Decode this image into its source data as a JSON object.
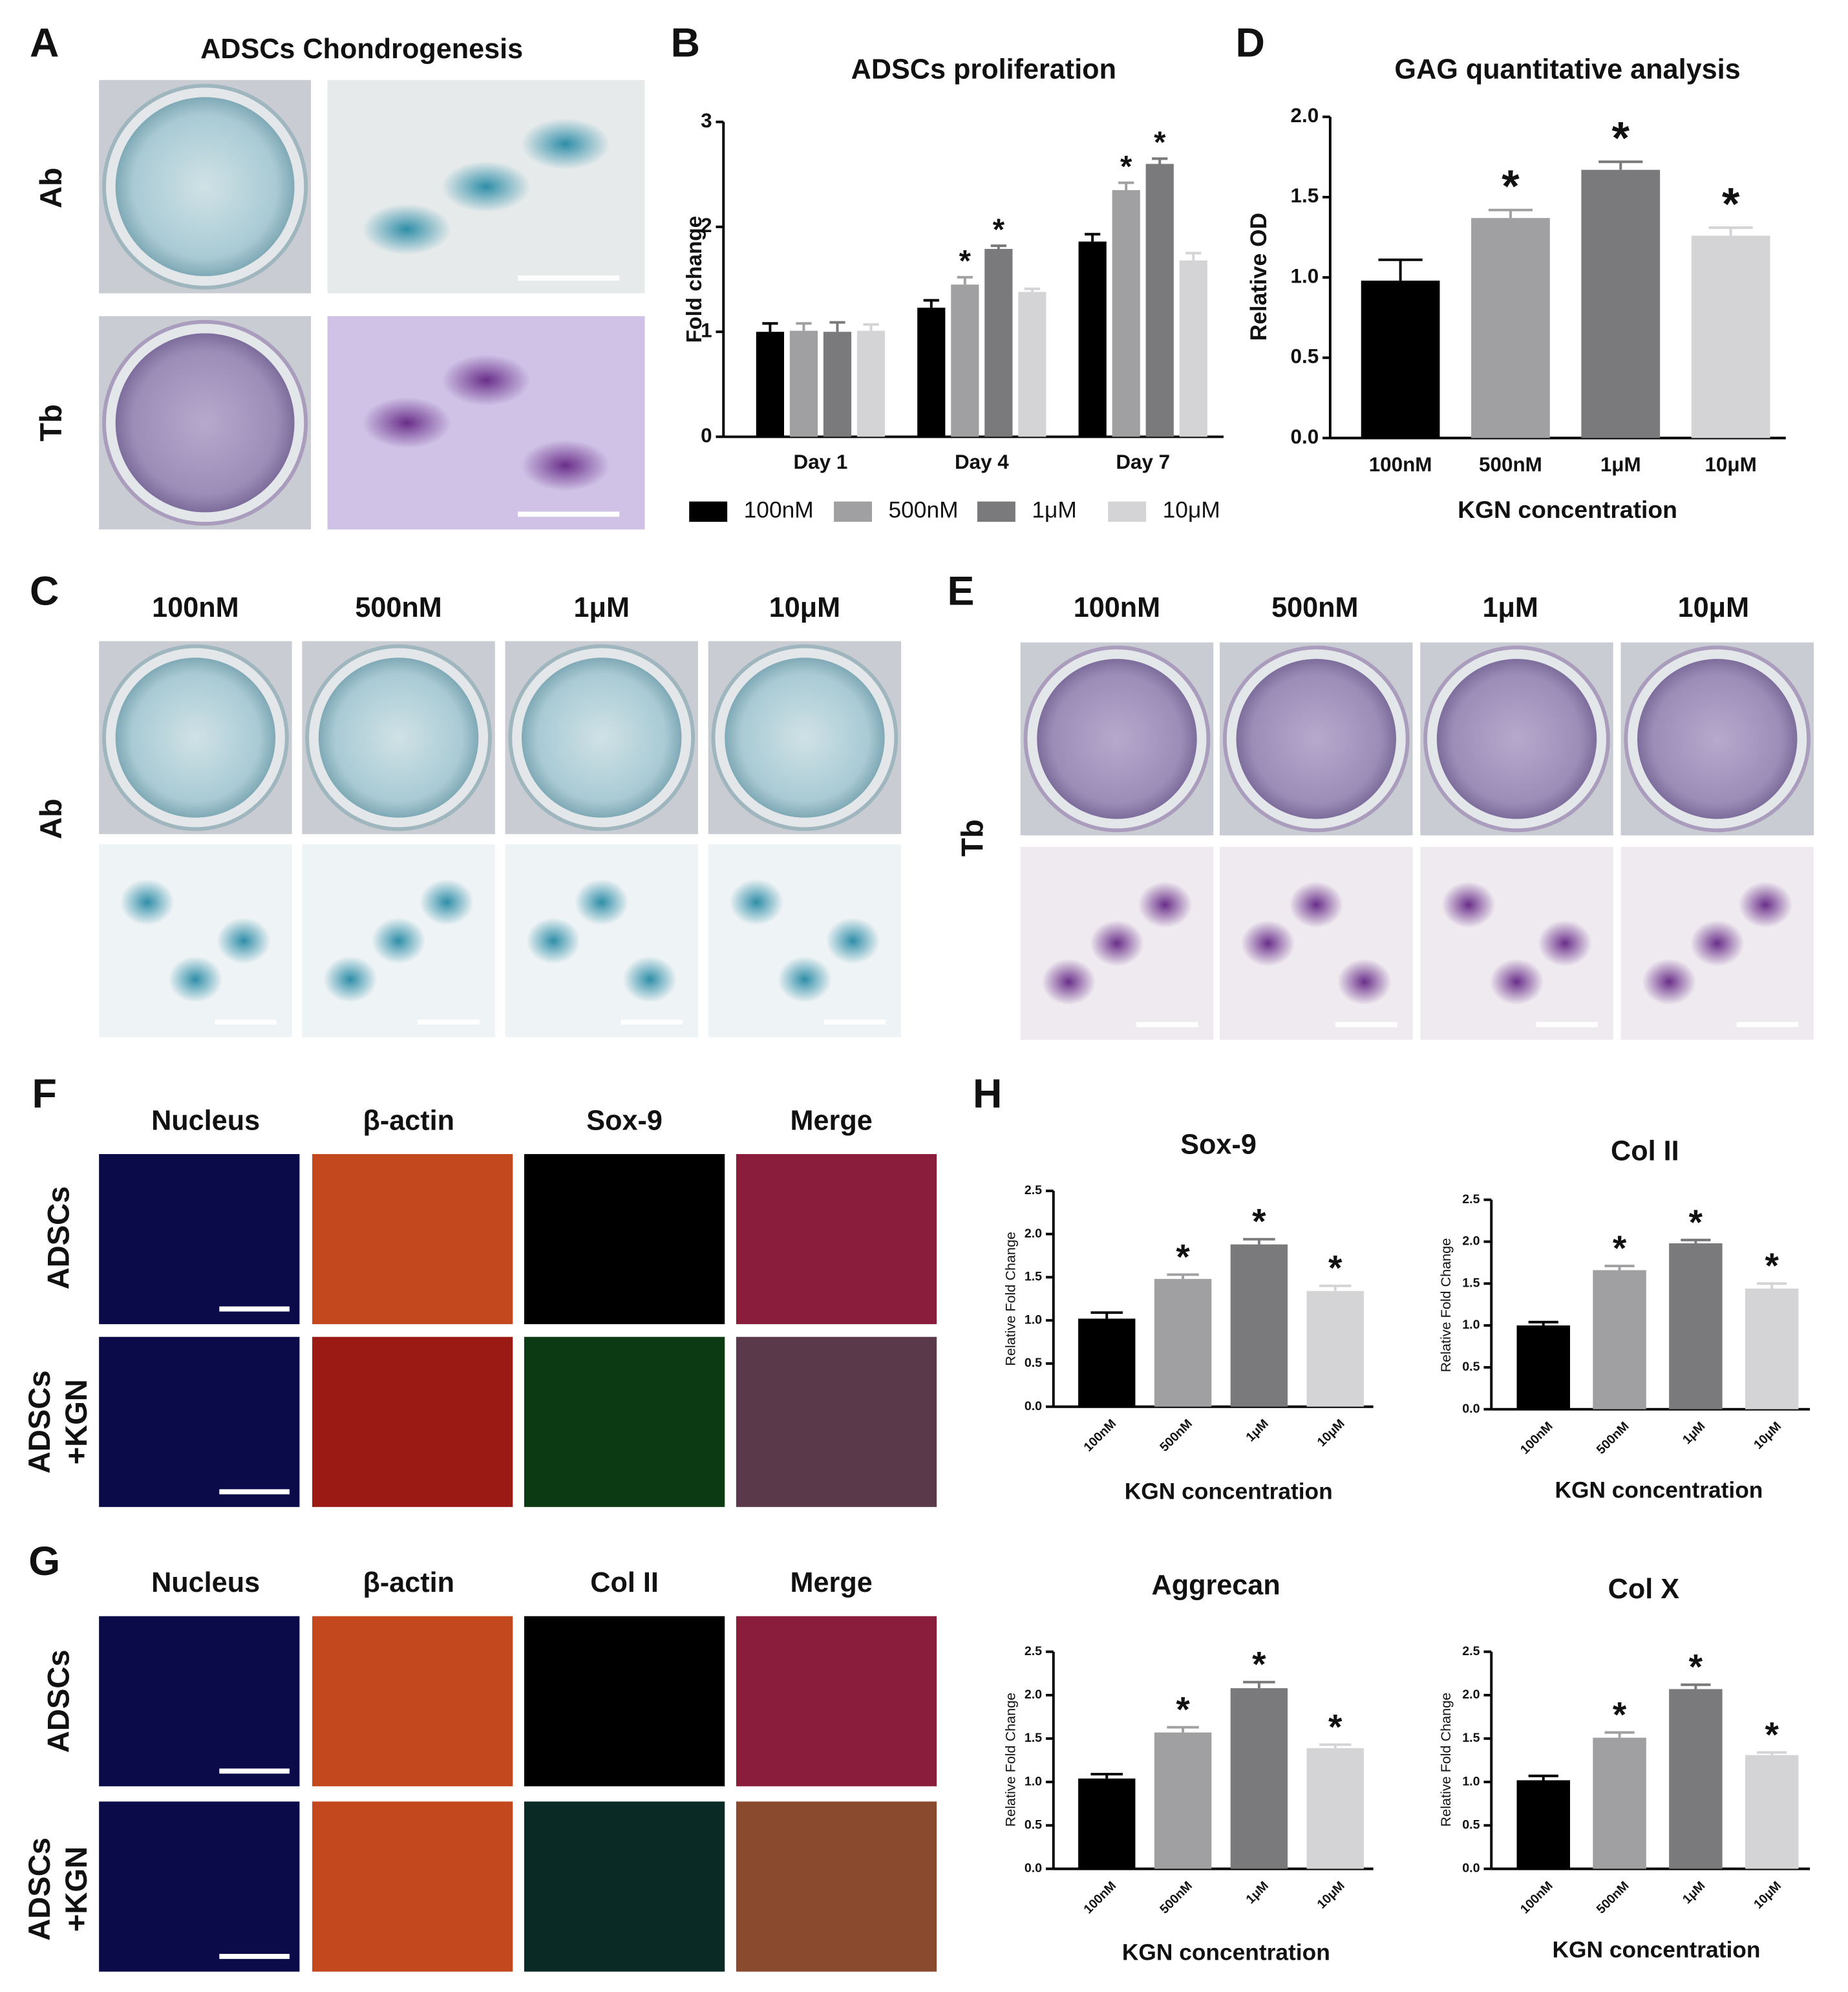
{
  "panels": {
    "A": {
      "letter": "A",
      "title": "ADSCs Chondrogenesis",
      "rows": [
        "Ab",
        "Tb"
      ]
    },
    "B": {
      "letter": "B"
    },
    "C": {
      "letter": "C",
      "columns": [
        "100nM",
        "500nM",
        "1μM",
        "10μM"
      ],
      "row": "Ab"
    },
    "D": {
      "letter": "D"
    },
    "E": {
      "letter": "E",
      "columns": [
        "100nM",
        "500nM",
        "1μM",
        "10μM"
      ],
      "row": "Tb"
    },
    "F": {
      "letter": "F",
      "columns": [
        "Nucleus",
        "β-actin",
        "Sox-9",
        "Merge"
      ],
      "rows": [
        [
          "ADSCs"
        ],
        [
          "ADSCs",
          "+KGN"
        ]
      ]
    },
    "G": {
      "letter": "G",
      "columns": [
        "Nucleus",
        "β-actin",
        "Col II",
        "Merge"
      ],
      "rows": [
        [
          "ADSCs"
        ],
        [
          "ADSCs",
          "+KGN"
        ]
      ]
    },
    "H": {
      "letter": "H"
    }
  },
  "chart_data": [
    {
      "type": "bar",
      "title": "ADSCs proliferation",
      "y_label": "Fold change",
      "categories": [
        "Day 1",
        "Day 4",
        "Day 7"
      ],
      "series": [
        {
          "name": "100nM",
          "color": "#000000",
          "values": [
            1.0,
            1.23,
            1.86
          ],
          "errors": [
            0.08,
            0.07,
            0.07
          ]
        },
        {
          "name": "500nM",
          "color": "#a0a0a2",
          "values": [
            1.01,
            1.45,
            2.35
          ],
          "errors": [
            0.07,
            0.07,
            0.07
          ],
          "significance": [
            null,
            "*",
            "*"
          ]
        },
        {
          "name": "1μM",
          "color": "#7a7a7c",
          "values": [
            1.0,
            1.79,
            2.6
          ],
          "errors": [
            0.09,
            0.03,
            0.05
          ],
          "significance": [
            null,
            "*",
            "*"
          ]
        },
        {
          "name": "10μM",
          "color": "#d4d4d6",
          "values": [
            1.01,
            1.38,
            1.68
          ],
          "errors": [
            0.06,
            0.03,
            0.07
          ]
        }
      ],
      "ylim": [
        0,
        3
      ],
      "yticks": [
        0,
        1,
        2,
        3
      ]
    },
    {
      "type": "bar",
      "title": "GAG quantitative analysis",
      "x_label": "KGN concentration",
      "y_label": "Relative OD",
      "categories": [
        "100nM",
        "500nM",
        "1μM",
        "10μM"
      ],
      "values": [
        0.98,
        1.37,
        1.67,
        1.26
      ],
      "errors": [
        0.13,
        0.05,
        0.05,
        0.05
      ],
      "colors": [
        "#000000",
        "#a0a0a2",
        "#7a7a7c",
        "#d4d4d6"
      ],
      "significance": [
        null,
        "*",
        "*",
        "*"
      ],
      "ylim": [
        0,
        2
      ],
      "yticks": [
        {
          "value": 0,
          "label": "0.0"
        },
        {
          "value": 0.5,
          "label": "0.5"
        },
        {
          "value": 1,
          "label": "1.0"
        },
        {
          "value": 1.5,
          "label": "1.5"
        },
        {
          "value": 2,
          "label": "2.0"
        }
      ]
    },
    {
      "type": "bar",
      "title": "Sox-9",
      "x_label": "KGN concentration",
      "y_label": "Relative Fold Change",
      "categories": [
        "100nM",
        "500nM",
        "1μM",
        "10μM"
      ],
      "values": [
        1.02,
        1.48,
        1.88,
        1.34
      ],
      "errors": [
        0.07,
        0.05,
        0.06,
        0.06
      ],
      "colors": [
        "#000000",
        "#a0a0a2",
        "#7a7a7c",
        "#d4d4d6"
      ],
      "significance": [
        null,
        "*",
        "*",
        "*"
      ],
      "ylim": [
        0,
        2.5
      ],
      "yticks": [
        {
          "value": 0,
          "label": "0.0"
        },
        {
          "value": 0.5,
          "label": "0.5"
        },
        {
          "value": 1,
          "label": "1.0"
        },
        {
          "value": 1.5,
          "label": "1.5"
        },
        {
          "value": 2,
          "label": "2.0"
        },
        2.5
      ]
    },
    {
      "type": "bar",
      "title": "Col II",
      "x_label": "KGN concentration",
      "y_label": "Relative Fold Change",
      "categories": [
        "100nM",
        "500nM",
        "1μM",
        "10μM"
      ],
      "values": [
        1.0,
        1.66,
        1.98,
        1.44
      ],
      "errors": [
        0.04,
        0.05,
        0.04,
        0.06
      ],
      "colors": [
        "#000000",
        "#a0a0a2",
        "#7a7a7c",
        "#d4d4d6"
      ],
      "significance": [
        null,
        "*",
        "*",
        "*"
      ],
      "ylim": [
        0,
        2.5
      ],
      "yticks": [
        {
          "value": 0,
          "label": "0.0"
        },
        {
          "value": 0.5,
          "label": "0.5"
        },
        {
          "value": 1,
          "label": "1.0"
        },
        {
          "value": 1.5,
          "label": "1.5"
        },
        {
          "value": 2,
          "label": "2.0"
        },
        2.5
      ]
    },
    {
      "type": "bar",
      "title": "Aggrecan",
      "x_label": "KGN concentration",
      "y_label": "Relative Fold Change",
      "categories": [
        "100nM",
        "500nM",
        "1μM",
        "10μM"
      ],
      "values": [
        1.04,
        1.57,
        2.08,
        1.39
      ],
      "errors": [
        0.05,
        0.06,
        0.07,
        0.04
      ],
      "colors": [
        "#000000",
        "#a0a0a2",
        "#7a7a7c",
        "#d4d4d6"
      ],
      "significance": [
        null,
        "*",
        "*",
        "*"
      ],
      "ylim": [
        0,
        2.5
      ],
      "yticks": [
        {
          "value": 0,
          "label": "0.0"
        },
        {
          "value": 0.5,
          "label": "0.5"
        },
        {
          "value": 1,
          "label": "1.0"
        },
        {
          "value": 1.5,
          "label": "1.5"
        },
        {
          "value": 2,
          "label": "2.0"
        },
        2.5
      ]
    },
    {
      "type": "bar",
      "title": "Col X",
      "x_label": "KGN concentration",
      "y_label": "Relative Fold Change",
      "categories": [
        "100nM",
        "500nM",
        "1μM",
        "10μM"
      ],
      "values": [
        1.02,
        1.51,
        2.07,
        1.31
      ],
      "errors": [
        0.05,
        0.06,
        0.05,
        0.03
      ],
      "colors": [
        "#000000",
        "#a0a0a2",
        "#7a7a7c",
        "#d4d4d6"
      ],
      "significance": [
        null,
        "*",
        "*",
        "*"
      ],
      "ylim": [
        0,
        2.5
      ],
      "yticks": [
        {
          "value": 0,
          "label": "0.0"
        },
        {
          "value": 0.5,
          "label": "0.5"
        },
        {
          "value": 1,
          "label": "1.0"
        },
        {
          "value": 1.5,
          "label": "1.5"
        },
        {
          "value": 2,
          "label": "2.0"
        },
        2.5
      ]
    }
  ]
}
